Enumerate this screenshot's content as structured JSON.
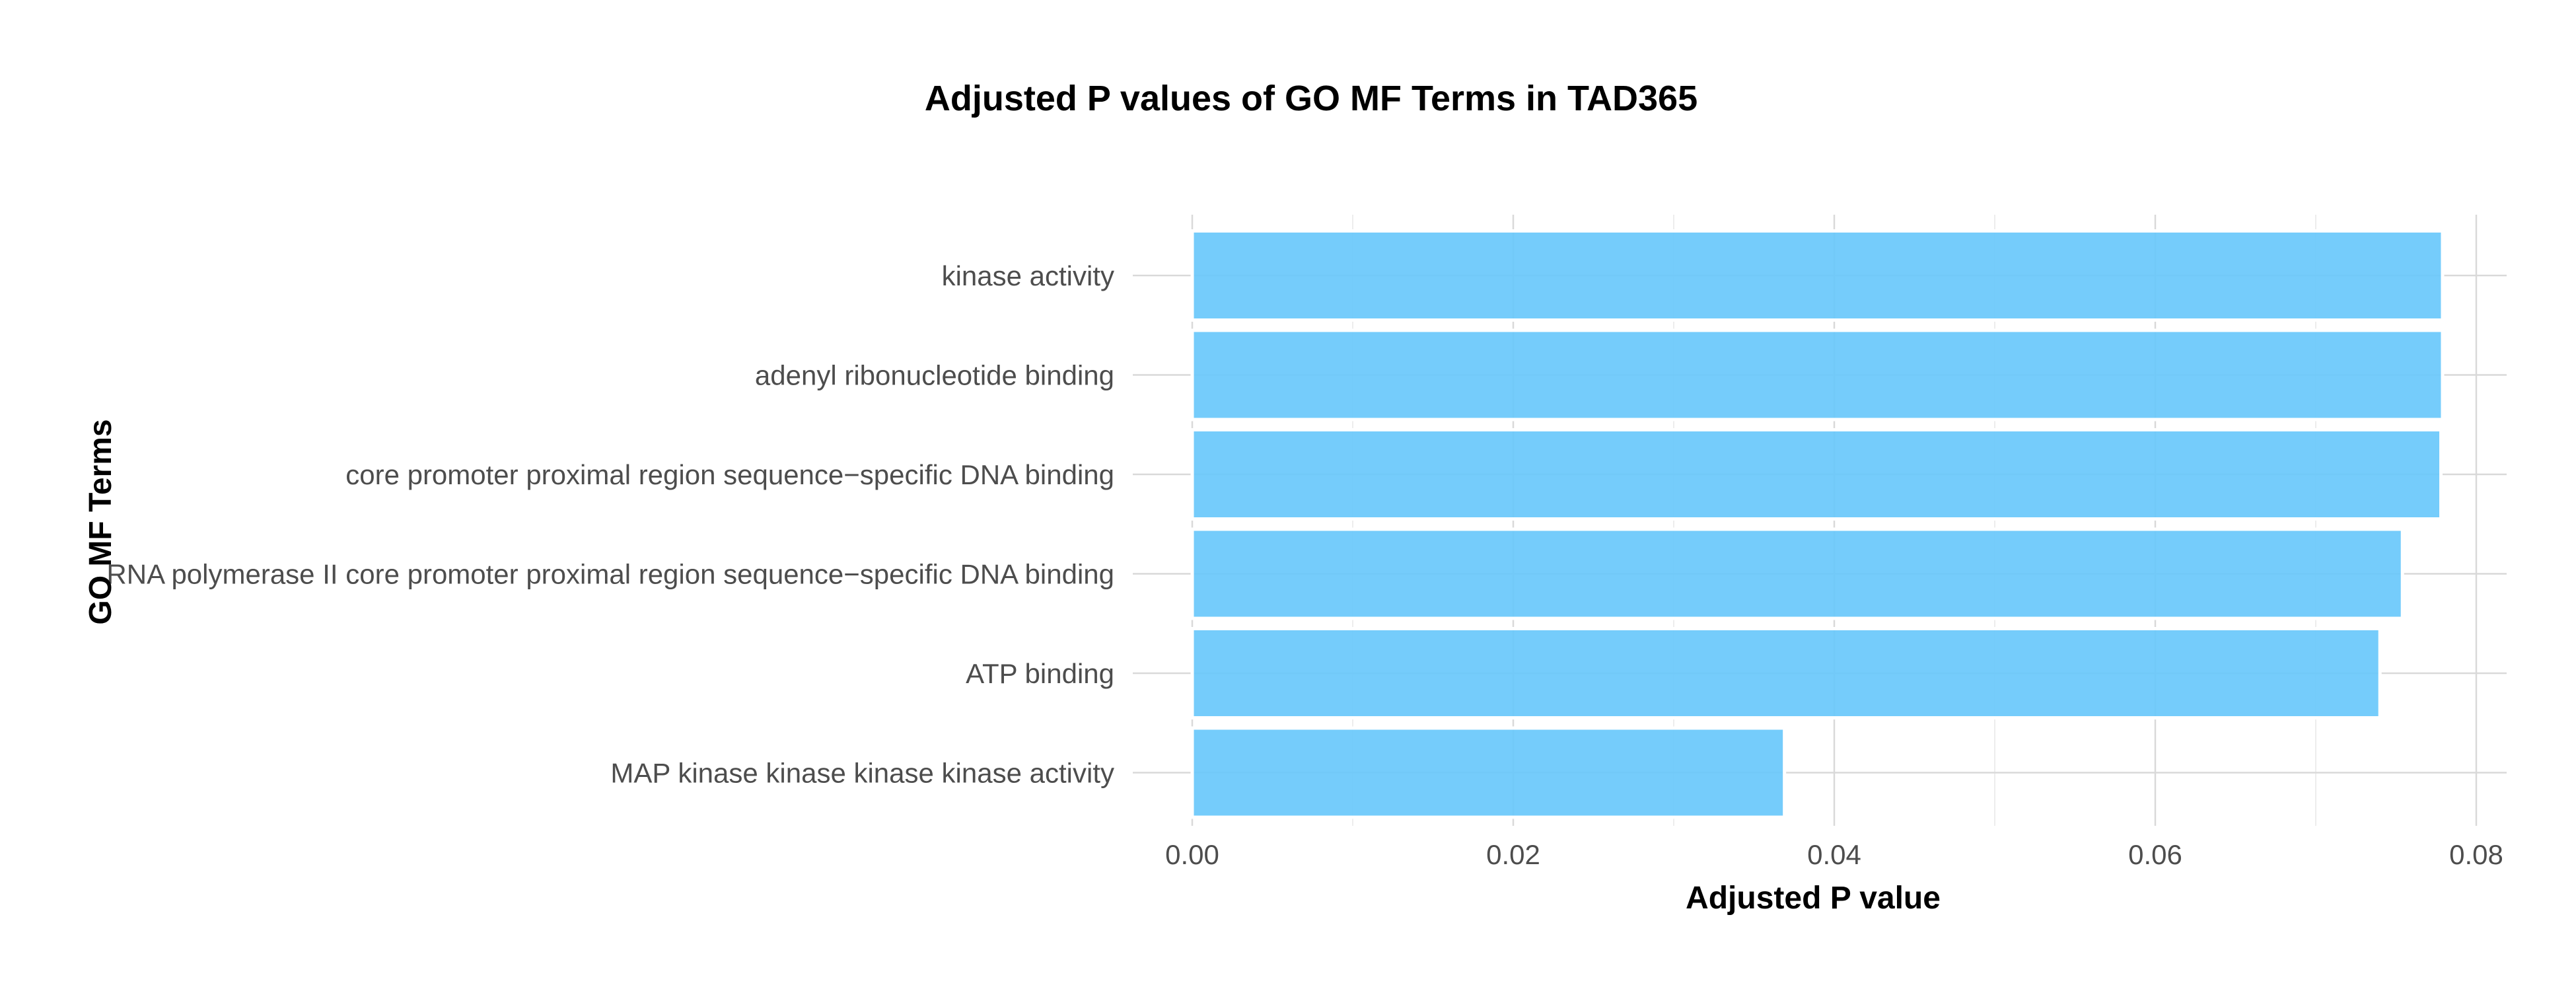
{
  "chart_data": {
    "type": "bar",
    "orientation": "horizontal",
    "title": "Adjusted P values of GO MF Terms in TAD365",
    "xlabel": "Adjusted P value",
    "ylabel": "GO MF Terms",
    "xlim": [
      0,
      0.08
    ],
    "x_ticks": [
      "0.00",
      "0.02",
      "0.04",
      "0.06",
      "0.08"
    ],
    "x_tick_values": [
      0,
      0.02,
      0.04,
      0.06,
      0.08
    ],
    "x_minor_tick_values": [
      0.01,
      0.03,
      0.05,
      0.07
    ],
    "grid": true,
    "bar_color": "#69c8fb",
    "categories": [
      "kinase activity",
      "adenyl ribonucleotide binding",
      "core promoter proximal region sequence−specific DNA binding",
      "RNA polymerase II core promoter proximal region sequence−specific DNA binding",
      "ATP binding",
      "MAP kinase kinase kinase kinase activity"
    ],
    "values": [
      0.0779,
      0.0779,
      0.0778,
      0.0754,
      0.074,
      0.0369
    ]
  }
}
